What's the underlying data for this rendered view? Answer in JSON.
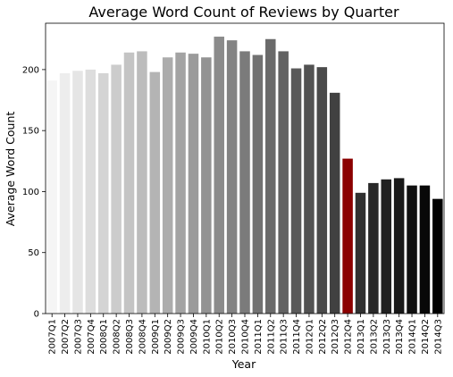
{
  "chart_data": {
    "type": "bar",
    "title": "Average Word Count of Reviews by Quarter",
    "xlabel": "Year",
    "ylabel": "Average Word Count",
    "ylim": [
      0,
      238
    ],
    "yticks": [
      0,
      50,
      100,
      150,
      200
    ],
    "grid": false,
    "legend": "none",
    "categories": [
      "2007Q1",
      "2007Q2",
      "2007Q3",
      "2007Q4",
      "2008Q1",
      "2008Q2",
      "2008Q3",
      "2008Q4",
      "2009Q1",
      "2009Q2",
      "2009Q3",
      "2009Q4",
      "2010Q1",
      "2010Q2",
      "2010Q3",
      "2010Q4",
      "2011Q1",
      "2011Q2",
      "2011Q3",
      "2011Q4",
      "2012Q1",
      "2012Q2",
      "2012Q3",
      "2012Q4",
      "2013Q1",
      "2013Q2",
      "2013Q3",
      "2013Q4",
      "2014Q1",
      "2014Q2",
      "2014Q3"
    ],
    "values": [
      191,
      197,
      199,
      200,
      197,
      204,
      214,
      215,
      198,
      210,
      214,
      213,
      210,
      227,
      224,
      215,
      212,
      225,
      215,
      201,
      204,
      202,
      181,
      127,
      99,
      107,
      110,
      111,
      105,
      105,
      94
    ],
    "highlight_category": "2012Q4",
    "highlight_color": "#8b0000",
    "gradient_start_color": "#f5f5f5",
    "gradient_end_color": "#000000"
  }
}
